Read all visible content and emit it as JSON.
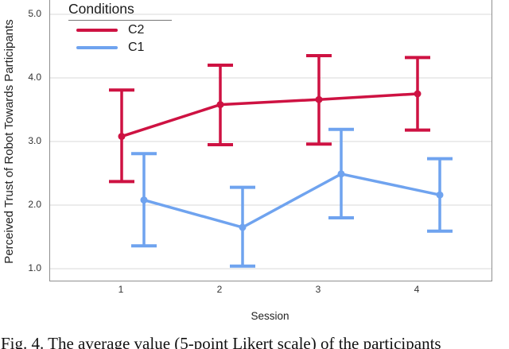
{
  "legend": {
    "title": "Conditions",
    "items": [
      {
        "label": "C2",
        "color": "#ce1242"
      },
      {
        "label": "C1",
        "color": "#6fa3ef"
      }
    ]
  },
  "y_axis": {
    "title": "Perceived Trust of Robot Towards Participants",
    "ticks": [
      "5.0",
      "4.0",
      "3.0",
      "2.0",
      "1.0"
    ]
  },
  "x_axis": {
    "title": "Session",
    "ticks": [
      "1",
      "2",
      "3",
      "4"
    ]
  },
  "caption": "Fig. 4. The average value (5-point Likert scale) of the participants",
  "chart_data": {
    "type": "line",
    "title": "",
    "xlabel": "Session",
    "ylabel": "Perceived Trust of Robot Towards Participants",
    "categories": [
      "1",
      "2",
      "3",
      "4"
    ],
    "ylim": [
      1.0,
      5.0
    ],
    "yticks": [
      1.0,
      2.0,
      3.0,
      4.0,
      5.0
    ],
    "grid": true,
    "error_bars": true,
    "legend_title": "Conditions",
    "legend_position": "top-left",
    "colors": {
      "gridline": "#d9d9d9",
      "axis_border": "#8f8f8f"
    },
    "series": [
      {
        "name": "C2",
        "color": "#ce1242",
        "values": [
          3.08,
          3.58,
          3.66,
          3.75
        ],
        "ci_lower": [
          2.37,
          2.95,
          2.96,
          3.18
        ],
        "ci_upper": [
          3.81,
          4.2,
          4.35,
          4.32
        ]
      },
      {
        "name": "C1",
        "color": "#6fa3ef",
        "values": [
          2.08,
          1.65,
          2.49,
          2.16
        ],
        "ci_lower": [
          1.36,
          1.04,
          1.8,
          1.59
        ],
        "ci_upper": [
          2.81,
          2.28,
          3.19,
          2.73
        ]
      }
    ]
  }
}
